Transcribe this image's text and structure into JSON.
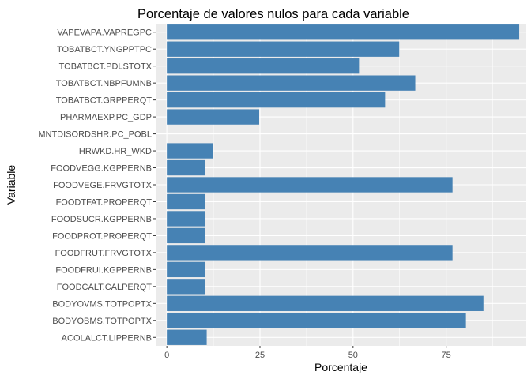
{
  "chart_data": {
    "type": "bar",
    "orientation": "horizontal",
    "title": "Porcentaje de valores nulos para cada variable",
    "xlabel": "Porcentaje",
    "ylabel": "Variable",
    "xlim": [
      -3,
      96.5
    ],
    "xticks": [
      0,
      25,
      50,
      75
    ],
    "grid": true,
    "legend": "none",
    "bar_color": "#4682B4",
    "panel_color": "#EBEBEB",
    "grid_color": "#FFFFFF",
    "categories": [
      "VAPEVAPA.VAPREGPC",
      "TOBATBCT.YNGPPTPC",
      "TOBATBCT.PDLSTOTX",
      "TOBATBCT.NBPFUMNB",
      "TOBATBCT.GRPPERQT",
      "PHARMAEXP.PC_GDP",
      "MNTDISORDSHR.PC_POBL",
      "HRWKD.HR_WKD",
      "FOODVEGG.KGPPERNB",
      "FOODVEGE.FRVGTOTX",
      "FOODTFAT.PROPERQT",
      "FOODSUCR.KGPPERNB",
      "FOODPROT.PROPERQT",
      "FOODFRUT.FRVGTOTX",
      "FOODFRUI.KGPPERNB",
      "FOODCALT.CALPERQT",
      "BODYOVMS.TOTPOPTX",
      "BODYOBMS.TOTPOPTX",
      "ACOLALCT.LIPPERNB"
    ],
    "values": [
      94.6,
      62.4,
      51.6,
      66.7,
      58.6,
      24.8,
      0,
      12.4,
      10.3,
      76.7,
      10.3,
      10.3,
      10.3,
      76.7,
      10.3,
      10.3,
      85.0,
      80.3,
      10.7
    ]
  }
}
